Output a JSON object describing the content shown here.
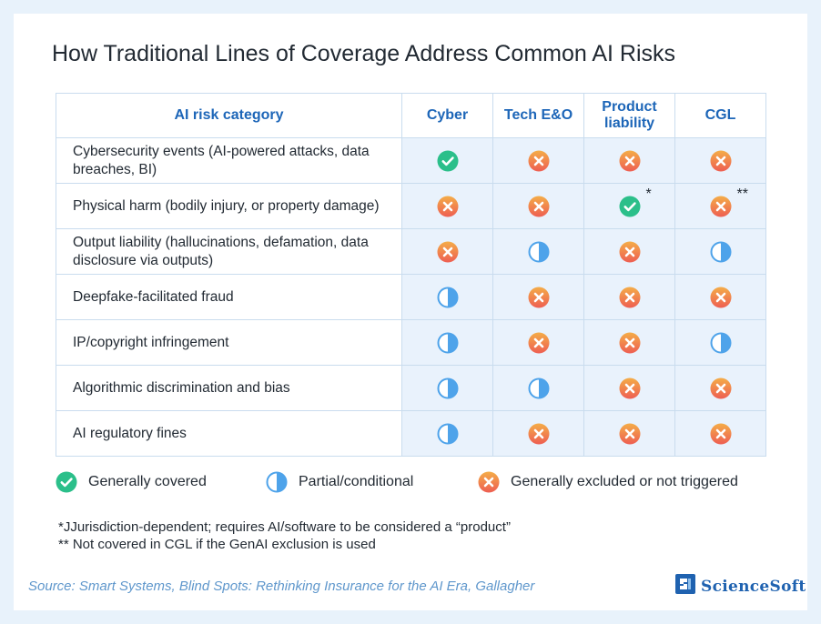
{
  "title": "How Traditional Lines of Coverage Address Common AI Risks",
  "table": {
    "headers": [
      "AI risk category",
      "Cyber",
      "Tech E&O",
      "Product liability",
      "CGL"
    ],
    "rows": [
      {
        "risk": "Cybersecurity events (AI-powered attacks, data breaches, BI)",
        "cells": [
          {
            "status": "covered"
          },
          {
            "status": "excluded"
          },
          {
            "status": "excluded"
          },
          {
            "status": "excluded"
          }
        ]
      },
      {
        "risk": "Physical harm (bodily injury, or property damage)",
        "cells": [
          {
            "status": "excluded"
          },
          {
            "status": "excluded"
          },
          {
            "status": "covered",
            "note": "*"
          },
          {
            "status": "excluded",
            "note": "**"
          }
        ]
      },
      {
        "risk": "Output liability (hallucinations, defamation, data disclosure via outputs)",
        "cells": [
          {
            "status": "excluded"
          },
          {
            "status": "partial"
          },
          {
            "status": "excluded"
          },
          {
            "status": "partial"
          }
        ]
      },
      {
        "risk": "Deepfake-facilitated fraud",
        "cells": [
          {
            "status": "partial"
          },
          {
            "status": "excluded"
          },
          {
            "status": "excluded"
          },
          {
            "status": "excluded"
          }
        ]
      },
      {
        "risk": "IP/copyright infringement",
        "cells": [
          {
            "status": "partial"
          },
          {
            "status": "excluded"
          },
          {
            "status": "excluded"
          },
          {
            "status": "partial"
          }
        ]
      },
      {
        "risk": "Algorithmic discrimination and bias",
        "cells": [
          {
            "status": "partial"
          },
          {
            "status": "partial"
          },
          {
            "status": "excluded"
          },
          {
            "status": "excluded"
          }
        ]
      },
      {
        "risk": "AI regulatory fines",
        "cells": [
          {
            "status": "partial"
          },
          {
            "status": "excluded"
          },
          {
            "status": "excluded"
          },
          {
            "status": "excluded"
          }
        ]
      }
    ]
  },
  "legend": {
    "covered": "Generally covered",
    "partial": "Partial/conditional",
    "excluded": "Generally excluded or not triggered"
  },
  "footnotes": [
    "*JJurisdiction-dependent; requires AI/software to be considered a “product”",
    "** Not covered in CGL if the GenAI exclusion is used"
  ],
  "source": "Source: Smart Systems, Blind Spots: Rethinking Insurance for the AI Era, Gallagher",
  "brand": {
    "name": "ScienceSoft",
    "icon": "sciencesoft-logo-icon"
  },
  "colors": {
    "covered": "#2bbf8a",
    "partial": "#4ea3ea",
    "excluded": "#f07a4e",
    "header_text": "#1d66b8",
    "cell_bg": "#e9f2fc",
    "page_bg": "#e8f2fb"
  }
}
